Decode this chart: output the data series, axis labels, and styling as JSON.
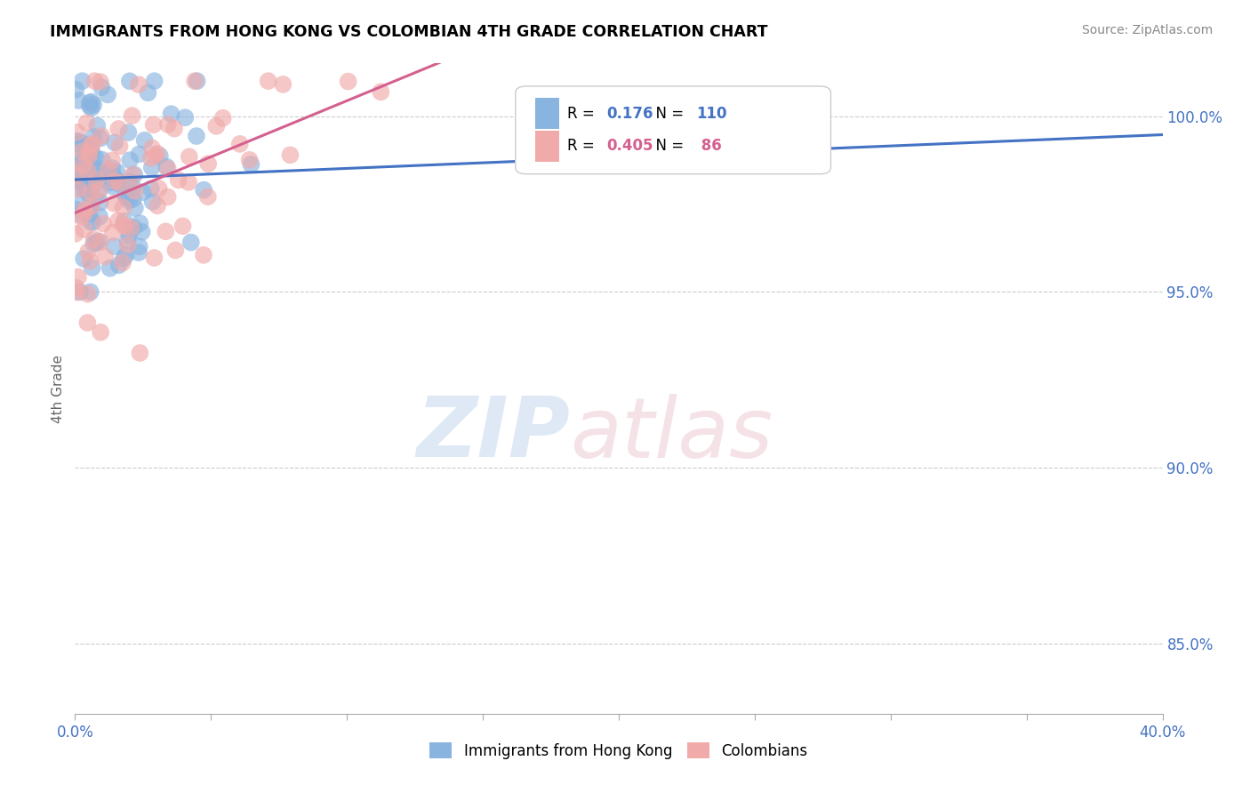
{
  "title": "IMMIGRANTS FROM HONG KONG VS COLOMBIAN 4TH GRADE CORRELATION CHART",
  "source": "Source: ZipAtlas.com",
  "ylabel_label": "4th Grade",
  "xmin": 0.0,
  "xmax": 40.0,
  "ymin": 83.0,
  "ymax": 101.5,
  "yticks": [
    85.0,
    90.0,
    95.0,
    100.0
  ],
  "R_hk": 0.176,
  "N_hk": 110,
  "R_col": 0.405,
  "N_col": 86,
  "legend1": "Immigrants from Hong Kong",
  "legend2": "Colombians",
  "blue_color": "#8ab4e0",
  "pink_color": "#f0aaaa",
  "blue_line": "#4472c4",
  "pink_line": "#d46090",
  "tick_color": "#4472c4"
}
